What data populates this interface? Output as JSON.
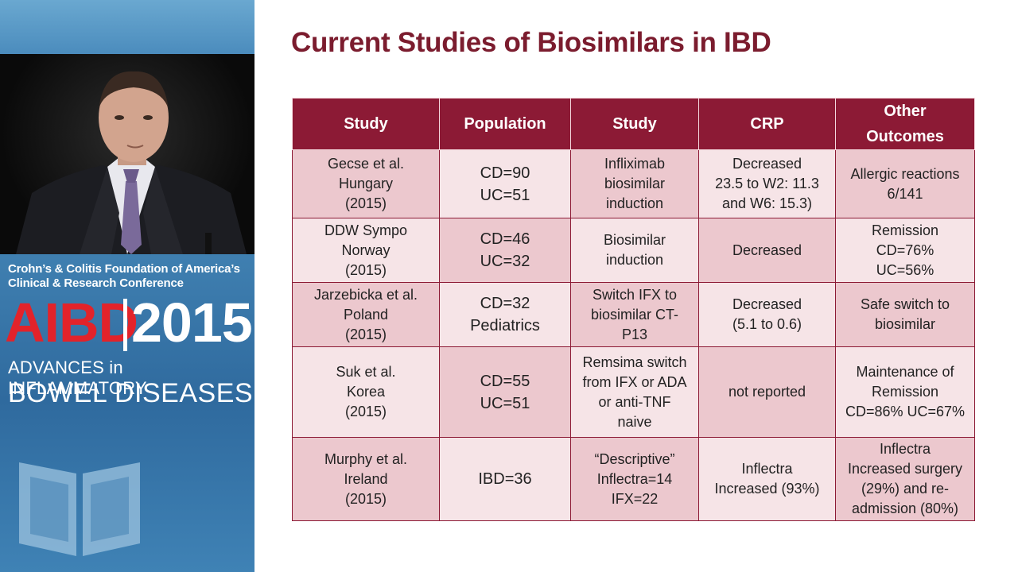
{
  "branding": {
    "org_line1": "Crohn’s & Colitis Foundation of America’s",
    "org_line2": "Clinical & Research Conference",
    "aibd": "AIBD",
    "year": "2015",
    "adv": "ADVANCES in INFLAMMATORY",
    "bowel": "BOWEL DISEASES"
  },
  "slide": {
    "title": "Current Studies of Biosimilars in IBD",
    "headers": [
      "Study",
      "Population",
      "Study",
      "CRP",
      [
        "Other",
        "Outcomes"
      ]
    ],
    "rows": [
      {
        "study": [
          "Gecse et al.",
          "Hungary",
          "(2015)"
        ],
        "population": [
          "CD=90",
          "UC=51"
        ],
        "design": [
          "Infliximab",
          "biosimilar",
          "induction"
        ],
        "crp": [
          "Decreased",
          "23.5 to W2: 11.3",
          "and W6: 15.3)"
        ],
        "outcomes": [
          "Allergic reactions",
          "6/141"
        ]
      },
      {
        "study": [
          "DDW Sympo",
          "Norway",
          "(2015)"
        ],
        "population": [
          "CD=46",
          "UC=32"
        ],
        "design": [
          "Biosimilar",
          "induction"
        ],
        "crp": [
          "Decreased"
        ],
        "outcomes": [
          "Remission",
          "CD=76%",
          "UC=56%"
        ]
      },
      {
        "study": [
          "Jarzebicka et al.",
          "Poland",
          "(2015)"
        ],
        "population": [
          "CD=32",
          "Pediatrics"
        ],
        "design": [
          "Switch IFX to",
          "biosimilar CT-",
          "P13"
        ],
        "crp": [
          "Decreased",
          "(5.1 to 0.6)"
        ],
        "outcomes": [
          "Safe switch to",
          "biosimilar"
        ]
      },
      {
        "study": [
          "Suk et al.",
          "Korea",
          "(2015)"
        ],
        "population": [
          "CD=55",
          "UC=51"
        ],
        "design": [
          "Remsima switch",
          "from IFX or ADA",
          "or anti-TNF",
          "naive"
        ],
        "crp": [
          "not reported"
        ],
        "outcomes": [
          "Maintenance of",
          "Remission",
          "CD=86% UC=67%"
        ]
      },
      {
        "study": [
          "Murphy et al.",
          "Ireland",
          "(2015)"
        ],
        "population": [
          "IBD=36"
        ],
        "design": [
          "“Descriptive”",
          "Inflectra=14",
          "IFX=22"
        ],
        "crp": [
          "Inflectra",
          "Increased (93%)"
        ],
        "outcomes": [
          "Inflectra",
          "Increased surgery",
          "(29%) and re-",
          "admission (80%)"
        ]
      }
    ]
  }
}
